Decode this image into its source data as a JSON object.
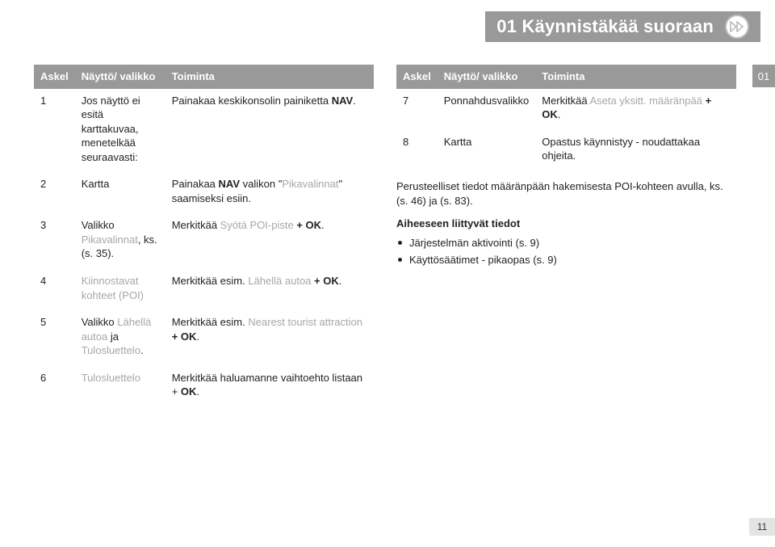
{
  "header": {
    "title": "01 Käynnistäkää suoraan",
    "side_tab": "01",
    "page_number": "11"
  },
  "table_headers": {
    "step": "Askel",
    "screen": "Näyttö/\nvalikko",
    "action": "Toiminta"
  },
  "left_steps": [
    {
      "n": "1",
      "screen_plain": "Jos näyttö ei esitä karttakuvaa, menetelkää seuraavasti:",
      "screen_hl": "",
      "action_pre": "Painakaa keskikonsolin painiketta ",
      "action_bold": "NAV",
      "action_post": "."
    },
    {
      "n": "2",
      "screen_plain": "Kartta",
      "screen_hl": "",
      "action_pre": "Painakaa ",
      "action_bold": "NAV",
      "action_post": " valikon \"Pikavalinnat\" saamiseksi esiin.",
      "action_post_hl_start": 9,
      "action_hl": "Pikavalinnat"
    },
    {
      "n": "3",
      "screen_plain": "Valikko ",
      "screen_hl": "Pikavalinnat",
      "screen_tail": ", ks. (s. 35).",
      "action_pre": "Merkitkää ",
      "action_hl": "Syötä POI-piste",
      "action_post_bold": " + OK",
      "action_post": "."
    },
    {
      "n": "4",
      "screen_plain": "",
      "screen_hl": "Kiinnostavat kohteet (POI)",
      "screen_tail": "",
      "action_pre": "Merkitkää esim. ",
      "action_hl": "Lähellä autoa",
      "action_post_bold": " + OK",
      "action_post": "."
    },
    {
      "n": "5",
      "screen_plain": "Valikko ",
      "screen_hl": "Lähellä autoa",
      "screen_mid": " ja ",
      "screen_hl2": "Tulosluettelo",
      "screen_tail": ".",
      "action_pre": "Merkitkää esim. ",
      "action_hl": "Nearest tourist attraction",
      "action_post_bold": " + OK",
      "action_post": "."
    },
    {
      "n": "6",
      "screen_plain": "",
      "screen_hl": "Tulosluettelo",
      "screen_tail": "",
      "action_pre": "Merkitkää haluamanne vaihtoehto listaan + ",
      "action_bold": "OK",
      "action_post": "."
    }
  ],
  "right_steps": [
    {
      "n": "7",
      "screen_plain": "Ponnahdusvalikko",
      "screen_hl": "",
      "action_pre": "Merkitkää ",
      "action_hl": "Aseta yksitt. määränpää",
      "action_post_bold": " + OK",
      "action_post": "."
    },
    {
      "n": "8",
      "screen_plain": "Kartta",
      "screen_hl": "",
      "action_pre": "Opastus käynnistyy - noudattakaa ohjeita.",
      "action_hl": "",
      "action_post": ""
    }
  ],
  "notes": {
    "para": "Perusteelliset tiedot määränpään hakemisesta POI-kohteen avulla, ks. (s. 46) ja (s. 83).",
    "related_hdr": "Aiheeseen liittyvät tiedot",
    "bullets": [
      "Järjestelmän aktivointi (s. 9)",
      "Käyttösäätimet - pikaopas (s. 9)"
    ]
  },
  "colors": {
    "header_bg": "#999999",
    "header_text": "#ffffff",
    "hl_text": "#a7a7a7",
    "body_text": "#222222",
    "pagenum_bg": "#e4e4e4"
  }
}
